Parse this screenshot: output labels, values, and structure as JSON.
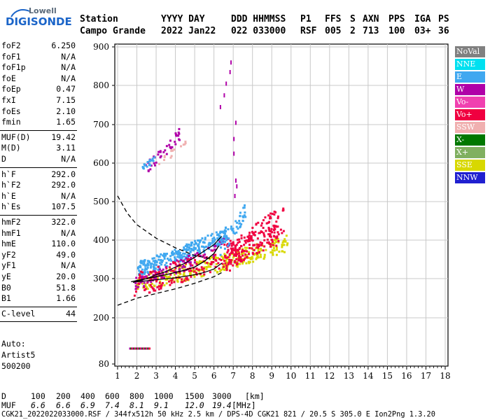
{
  "logo": {
    "line1": "Lowell",
    "line2": "DIGISONDE"
  },
  "header": {
    "cols": [
      {
        "label": "Station",
        "value": "Campo Grande"
      },
      {
        "label": "YYYY DAY",
        "value": "2022 Jan22"
      },
      {
        "label": "DDD HHMMSS",
        "value": "022 033000"
      },
      {
        "label": "P1",
        "value": "RSF"
      },
      {
        "label": "FFS",
        "value": "005"
      },
      {
        "label": "S",
        "value": "2"
      },
      {
        "label": "AXN",
        "value": "713"
      },
      {
        "label": "PPS",
        "value": "100"
      },
      {
        "label": "IGA",
        "value": "03+"
      },
      {
        "label": "PS",
        "value": "36"
      }
    ]
  },
  "left_panel": {
    "group1": [
      {
        "k": "foF2",
        "v": "6.250"
      },
      {
        "k": "foF1",
        "v": "N/A"
      },
      {
        "k": "foF1p",
        "v": "N/A"
      },
      {
        "k": "foE",
        "v": "N/A"
      },
      {
        "k": "foEp",
        "v": "0.47"
      },
      {
        "k": "fxI",
        "v": "7.15"
      },
      {
        "k": "foEs",
        "v": "2.10"
      },
      {
        "k": "fmin",
        "v": "1.65"
      }
    ],
    "group2": [
      {
        "k": "MUF(D)",
        "v": "19.42"
      },
      {
        "k": "M(D)",
        "v": "3.11"
      },
      {
        "k": "D",
        "v": "N/A"
      }
    ],
    "group3": [
      {
        "k": "h`F",
        "v": "292.0"
      },
      {
        "k": "h`F2",
        "v": "292.0"
      },
      {
        "k": "h`E",
        "v": "N/A"
      },
      {
        "k": "h`Es",
        "v": "107.5"
      }
    ],
    "group4": [
      {
        "k": "hmF2",
        "v": "322.0"
      },
      {
        "k": "hmF1",
        "v": "N/A"
      },
      {
        "k": "hmE",
        "v": "110.0"
      },
      {
        "k": "yF2",
        "v": "49.0"
      },
      {
        "k": "yF1",
        "v": "N/A"
      },
      {
        "k": "yE",
        "v": "20.0"
      },
      {
        "k": "B0",
        "v": "51.8"
      },
      {
        "k": "B1",
        "v": "1.66"
      }
    ],
    "group5": [
      {
        "k": "C-level",
        "v": "44"
      }
    ],
    "auto": [
      "Auto:",
      "Artist5",
      "500200"
    ]
  },
  "legend": [
    {
      "label": "NoVal",
      "color": "#808080"
    },
    {
      "label": "NNE",
      "color": "#00e0f0"
    },
    {
      "label": "E",
      "color": "#40a8f0"
    },
    {
      "label": "W",
      "color": "#b000a8"
    },
    {
      "label": "Vo-",
      "color": "#f040b0"
    },
    {
      "label": "Vo+",
      "color": "#f00040"
    },
    {
      "label": "SSW",
      "color": "#f0b0b0"
    },
    {
      "label": "X-",
      "color": "#007800"
    },
    {
      "label": "X+",
      "color": "#80b060"
    },
    {
      "label": "SSE",
      "color": "#d8d800"
    },
    {
      "label": "NNW",
      "color": "#2020d0"
    }
  ],
  "footer": {
    "d_label": "D",
    "d_values": [
      "100",
      "200",
      "400",
      "600",
      "800",
      "1000",
      "1500",
      "3000",
      "[km]"
    ],
    "muf_label": "MUF",
    "muf_values": [
      "6.6",
      "6.6",
      "6.9",
      "7.4",
      "8.1",
      "9.1",
      "12.0",
      "19.4"
    ],
    "muf_unit": "[MHz]",
    "info": "CGK21_2022022033000.RSF / 344fx512h 50 kHz 2.5 km / DPS-4D CGK21 821 / 20.5 S 305.0 E Ion2Png 1.3.20"
  },
  "chart_data": {
    "type": "scatter",
    "xlim": [
      1,
      18
    ],
    "ylim": [
      80,
      900
    ],
    "x_ticks": [
      "1",
      "2",
      "3",
      "4",
      "5",
      "6",
      "7",
      "8",
      "9",
      "10",
      "11",
      "12",
      "13",
      "14",
      "15",
      "16",
      "17",
      "18"
    ],
    "y_ticks": [
      "80",
      "200",
      "300",
      "400",
      "500",
      "600",
      "700",
      "800",
      "900"
    ],
    "y_tick_values": [
      80,
      200,
      300,
      400,
      500,
      600,
      700,
      800,
      900
    ],
    "grid": true,
    "clusters": [
      {
        "name": "SSE",
        "color": "#d8d800",
        "n": 320,
        "x": [
          1.9,
          9.8
        ],
        "y0": 292,
        "y1": 395,
        "spread": 22
      },
      {
        "name": "E",
        "color": "#40a8f0",
        "n": 300,
        "x": [
          2.0,
          6.7
        ],
        "y0": 330,
        "y1": 420,
        "spread": 20
      },
      {
        "name": "Vo+",
        "color": "#f00040",
        "n": 260,
        "x": [
          1.8,
          9.3
        ],
        "y0": 288,
        "y1": 420,
        "spread": 30
      },
      {
        "name": "W",
        "color": "#b000a8",
        "n": 90,
        "x": [
          1.8,
          6.8
        ],
        "y0": 290,
        "y1": 400,
        "spread": 18
      },
      {
        "name": "Vo+ upper",
        "color": "#f00040",
        "n": 120,
        "x": [
          6.6,
          9.6
        ],
        "y0": 360,
        "y1": 460,
        "spread": 40
      },
      {
        "name": "E upper",
        "color": "#40a8f0",
        "n": 50,
        "x": [
          6.2,
          7.6
        ],
        "y0": 380,
        "y1": 480,
        "spread": 20
      },
      {
        "name": "W high",
        "color": "#b000a8",
        "n": 40,
        "x": [
          2.4,
          4.2
        ],
        "y0": 590,
        "y1": 680,
        "spread": 15
      },
      {
        "name": "E high",
        "color": "#40a8f0",
        "n": 20,
        "x": [
          2.2,
          3.0
        ],
        "y0": 588,
        "y1": 620,
        "spread": 8
      },
      {
        "name": "SSW high",
        "color": "#f0b0b0",
        "n": 15,
        "x": [
          3.0,
          4.5
        ],
        "y0": 600,
        "y1": 660,
        "spread": 10
      }
    ],
    "line_points": [
      {
        "color": "#b000a8",
        "pts": [
          [
            6.3,
            750
          ],
          [
            6.5,
            780
          ],
          [
            6.6,
            810
          ],
          [
            6.8,
            840
          ],
          [
            6.85,
            865
          ],
          [
            7.1,
            710
          ],
          [
            7.0,
            668
          ],
          [
            7.0,
            630
          ],
          [
            7.1,
            560
          ],
          [
            7.15,
            545
          ],
          [
            7.05,
            520
          ]
        ]
      }
    ],
    "es_trace": {
      "x": [
        1.6,
        2.6
      ],
      "y": 121
    },
    "profile": [
      [
        1.7,
        292
      ],
      [
        2.0,
        295
      ],
      [
        2.5,
        300
      ],
      [
        3.0,
        305
      ],
      [
        3.5,
        310
      ],
      [
        4.0,
        316
      ],
      [
        4.5,
        322
      ],
      [
        5.0,
        330
      ],
      [
        5.5,
        345
      ],
      [
        6.0,
        365
      ],
      [
        6.25,
        385
      ]
    ],
    "trace_upper": [
      [
        1.8,
        290
      ],
      [
        2.5,
        300
      ],
      [
        3.0,
        310
      ],
      [
        3.5,
        318
      ],
      [
        4.0,
        330
      ],
      [
        4.5,
        340
      ],
      [
        5.0,
        355
      ],
      [
        5.5,
        372
      ],
      [
        6.0,
        388
      ],
      [
        6.4,
        410
      ]
    ],
    "trace_lower": [
      [
        2.0,
        292
      ],
      [
        3.0,
        297
      ],
      [
        4.0,
        302
      ],
      [
        5.0,
        310
      ],
      [
        5.5,
        316
      ],
      [
        6.0,
        325
      ],
      [
        6.4,
        340
      ]
    ],
    "dashed_left": [
      [
        1.0,
        515
      ],
      [
        1.5,
        470
      ],
      [
        2.0,
        440
      ],
      [
        3.0,
        405
      ],
      [
        4.0,
        380
      ],
      [
        5.0,
        360
      ],
      [
        6.0,
        350
      ]
    ],
    "dashed_bottom": [
      [
        1.0,
        232
      ],
      [
        2.0,
        250
      ],
      [
        3.0,
        262
      ],
      [
        4.0,
        274
      ],
      [
        5.0,
        288
      ],
      [
        6.0,
        305
      ],
      [
        6.5,
        318
      ]
    ]
  }
}
